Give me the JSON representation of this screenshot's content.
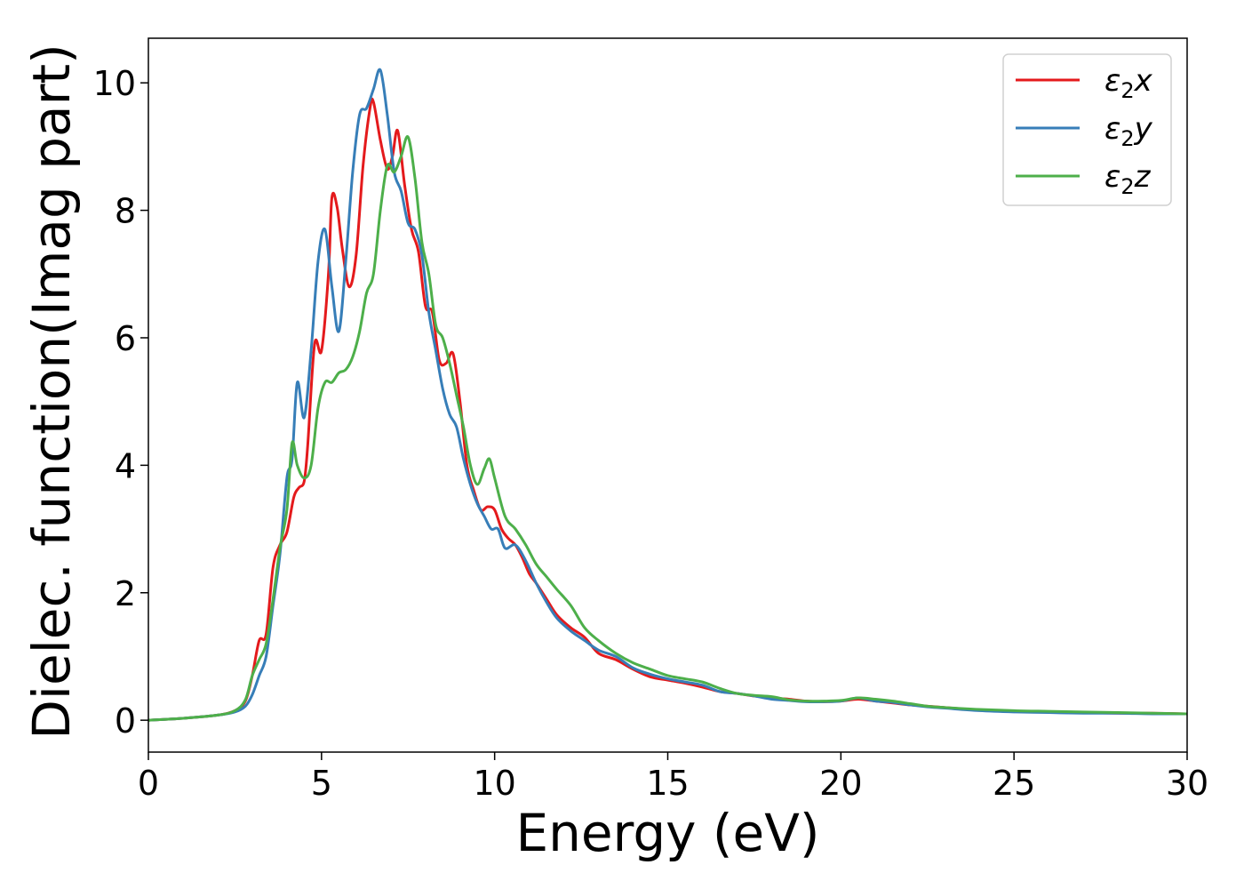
{
  "chart_data": {
    "type": "line",
    "title": "",
    "xlabel": "Energy (eV)",
    "ylabel": "Dielec. function(Imag part)",
    "xlim": [
      0,
      30
    ],
    "ylim": [
      -0.5,
      10.7
    ],
    "xticks": [
      0,
      5,
      10,
      15,
      20,
      25,
      30
    ],
    "yticks": [
      0,
      2,
      4,
      6,
      8,
      10
    ],
    "grid": false,
    "legend_position": "top-right",
    "series": [
      {
        "name": "ε2x",
        "legend_base": "ε",
        "legend_sub": "2",
        "legend_var": "x",
        "color": "#e41a1c",
        "x": [
          0,
          1,
          2,
          2.5,
          2.8,
          3.0,
          3.2,
          3.4,
          3.6,
          3.8,
          4.0,
          4.2,
          4.35,
          4.5,
          4.6,
          4.8,
          5.0,
          5.2,
          5.3,
          5.45,
          5.6,
          5.8,
          6.0,
          6.2,
          6.4,
          6.5,
          6.7,
          6.9,
          7.05,
          7.2,
          7.4,
          7.6,
          7.8,
          8.0,
          8.2,
          8.4,
          8.6,
          8.8,
          9.0,
          9.2,
          9.4,
          9.6,
          9.8,
          10.0,
          10.2,
          10.4,
          10.6,
          10.8,
          11.0,
          11.2,
          11.5,
          11.8,
          12.2,
          12.6,
          13.0,
          13.5,
          14.0,
          14.5,
          15.0,
          15.5,
          16.0,
          16.5,
          17.0,
          17.5,
          18.0,
          18.5,
          19.0,
          19.5,
          20.0,
          20.5,
          21.0,
          21.5,
          22.0,
          22.5,
          23.0,
          24.0,
          25.0,
          26.0,
          27.0,
          28.0,
          29.0,
          30.0
        ],
        "y": [
          0,
          0.03,
          0.08,
          0.15,
          0.3,
          0.7,
          1.25,
          1.35,
          2.4,
          2.75,
          2.95,
          3.5,
          3.65,
          3.75,
          4.3,
          5.9,
          5.8,
          7.0,
          8.2,
          8.05,
          7.4,
          6.8,
          7.3,
          8.7,
          9.6,
          9.7,
          9.1,
          8.65,
          8.85,
          9.25,
          8.4,
          7.7,
          7.35,
          6.5,
          6.4,
          5.65,
          5.6,
          5.75,
          5.0,
          4.0,
          3.6,
          3.3,
          3.35,
          3.3,
          3.0,
          2.85,
          2.75,
          2.55,
          2.3,
          2.15,
          1.9,
          1.65,
          1.45,
          1.3,
          1.05,
          0.95,
          0.8,
          0.68,
          0.63,
          0.58,
          0.52,
          0.45,
          0.42,
          0.38,
          0.35,
          0.33,
          0.3,
          0.29,
          0.3,
          0.33,
          0.3,
          0.27,
          0.24,
          0.22,
          0.2,
          0.16,
          0.14,
          0.13,
          0.12,
          0.11,
          0.11,
          0.1
        ]
      },
      {
        "name": "ε2y",
        "legend_base": "ε",
        "legend_sub": "2",
        "legend_var": "y",
        "color": "#377eb8",
        "x": [
          0,
          1,
          2,
          2.5,
          2.8,
          3.0,
          3.2,
          3.4,
          3.6,
          3.8,
          4.0,
          4.15,
          4.3,
          4.5,
          4.7,
          4.9,
          5.1,
          5.3,
          5.5,
          5.7,
          5.9,
          6.1,
          6.3,
          6.5,
          6.7,
          6.9,
          7.1,
          7.3,
          7.5,
          7.7,
          7.9,
          8.1,
          8.3,
          8.5,
          8.7,
          8.9,
          9.1,
          9.3,
          9.5,
          9.7,
          9.9,
          10.1,
          10.3,
          10.6,
          10.9,
          11.2,
          11.5,
          11.8,
          12.2,
          12.6,
          13.0,
          13.5,
          14.0,
          14.5,
          15.0,
          15.5,
          16.0,
          16.5,
          17.0,
          17.5,
          18.0,
          18.5,
          19.0,
          19.5,
          20.0,
          20.5,
          21.0,
          21.5,
          22.0,
          22.5,
          23.0,
          24.0,
          25.0,
          26.0,
          27.0,
          28.0,
          29.0,
          30.0
        ],
        "y": [
          0,
          0.03,
          0.08,
          0.13,
          0.22,
          0.4,
          0.7,
          1.0,
          1.8,
          2.6,
          3.8,
          4.1,
          5.3,
          4.75,
          5.8,
          7.2,
          7.7,
          6.8,
          6.1,
          7.2,
          8.6,
          9.5,
          9.6,
          9.9,
          10.2,
          9.5,
          8.6,
          8.3,
          7.8,
          7.7,
          7.3,
          6.4,
          5.8,
          5.2,
          4.8,
          4.6,
          4.1,
          3.7,
          3.4,
          3.2,
          3.0,
          3.0,
          2.7,
          2.75,
          2.5,
          2.15,
          1.85,
          1.6,
          1.4,
          1.25,
          1.1,
          1.0,
          0.82,
          0.72,
          0.65,
          0.6,
          0.55,
          0.45,
          0.42,
          0.38,
          0.33,
          0.31,
          0.29,
          0.29,
          0.3,
          0.35,
          0.3,
          0.28,
          0.24,
          0.21,
          0.19,
          0.15,
          0.13,
          0.12,
          0.11,
          0.11,
          0.1,
          0.1
        ]
      },
      {
        "name": "ε2z",
        "legend_base": "ε",
        "legend_sub": "2",
        "legend_var": "z",
        "color": "#4daf4a",
        "x": [
          0,
          1,
          2,
          2.5,
          2.8,
          3.0,
          3.2,
          3.4,
          3.6,
          3.8,
          4.0,
          4.15,
          4.3,
          4.5,
          4.7,
          4.9,
          5.1,
          5.3,
          5.5,
          5.7,
          5.9,
          6.1,
          6.3,
          6.5,
          6.7,
          6.9,
          7.1,
          7.3,
          7.5,
          7.7,
          7.9,
          8.1,
          8.3,
          8.5,
          8.7,
          8.9,
          9.1,
          9.3,
          9.5,
          9.7,
          9.85,
          10.0,
          10.3,
          10.6,
          10.9,
          11.2,
          11.5,
          11.8,
          12.2,
          12.6,
          13.0,
          13.5,
          14.0,
          14.5,
          15.0,
          15.5,
          16.0,
          16.5,
          17.0,
          17.5,
          18.0,
          18.5,
          19.0,
          19.5,
          20.0,
          20.5,
          21.0,
          21.5,
          22.0,
          22.5,
          23.0,
          24.0,
          25.0,
          26.0,
          27.0,
          28.0,
          29.0,
          30.0
        ],
        "y": [
          0,
          0.03,
          0.08,
          0.15,
          0.32,
          0.7,
          0.95,
          1.2,
          1.9,
          2.7,
          3.3,
          4.35,
          4.0,
          3.8,
          4.0,
          4.9,
          5.3,
          5.3,
          5.45,
          5.5,
          5.7,
          6.1,
          6.7,
          7.0,
          8.0,
          8.7,
          8.6,
          8.85,
          9.15,
          8.5,
          7.5,
          7.0,
          6.2,
          6.0,
          5.6,
          5.1,
          4.6,
          4.0,
          3.7,
          3.95,
          4.1,
          3.8,
          3.2,
          3.0,
          2.75,
          2.45,
          2.25,
          2.05,
          1.8,
          1.45,
          1.25,
          1.05,
          0.9,
          0.8,
          0.7,
          0.65,
          0.6,
          0.5,
          0.42,
          0.39,
          0.37,
          0.32,
          0.3,
          0.3,
          0.31,
          0.35,
          0.33,
          0.3,
          0.26,
          0.22,
          0.2,
          0.17,
          0.15,
          0.14,
          0.13,
          0.12,
          0.11,
          0.1
        ]
      }
    ]
  }
}
